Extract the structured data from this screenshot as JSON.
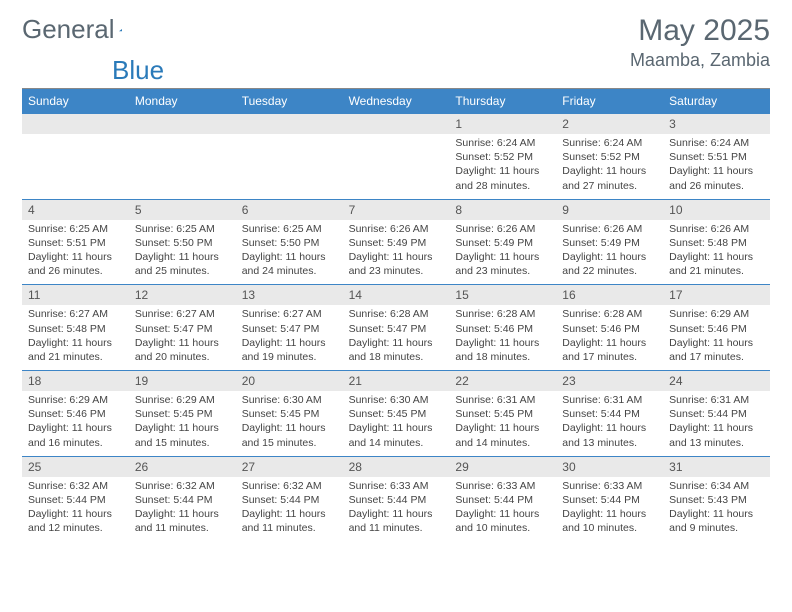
{
  "logo": {
    "text1": "General",
    "text2": "Blue"
  },
  "title": {
    "month": "May 2025",
    "location": "Maamba, Zambia"
  },
  "colors": {
    "header_bg": "#3d85c6",
    "header_text": "#ffffff",
    "daynum_bg": "#e9e9e9",
    "text": "#444444",
    "rule": "#3d85c6",
    "logo_gray": "#5a6771",
    "logo_blue": "#2a7ab9"
  },
  "day_names": [
    "Sunday",
    "Monday",
    "Tuesday",
    "Wednesday",
    "Thursday",
    "Friday",
    "Saturday"
  ],
  "weeks": [
    [
      {
        "n": "",
        "body": ""
      },
      {
        "n": "",
        "body": ""
      },
      {
        "n": "",
        "body": ""
      },
      {
        "n": "",
        "body": ""
      },
      {
        "n": "1",
        "body": "Sunrise: 6:24 AM\nSunset: 5:52 PM\nDaylight: 11 hours and 28 minutes."
      },
      {
        "n": "2",
        "body": "Sunrise: 6:24 AM\nSunset: 5:52 PM\nDaylight: 11 hours and 27 minutes."
      },
      {
        "n": "3",
        "body": "Sunrise: 6:24 AM\nSunset: 5:51 PM\nDaylight: 11 hours and 26 minutes."
      }
    ],
    [
      {
        "n": "4",
        "body": "Sunrise: 6:25 AM\nSunset: 5:51 PM\nDaylight: 11 hours and 26 minutes."
      },
      {
        "n": "5",
        "body": "Sunrise: 6:25 AM\nSunset: 5:50 PM\nDaylight: 11 hours and 25 minutes."
      },
      {
        "n": "6",
        "body": "Sunrise: 6:25 AM\nSunset: 5:50 PM\nDaylight: 11 hours and 24 minutes."
      },
      {
        "n": "7",
        "body": "Sunrise: 6:26 AM\nSunset: 5:49 PM\nDaylight: 11 hours and 23 minutes."
      },
      {
        "n": "8",
        "body": "Sunrise: 6:26 AM\nSunset: 5:49 PM\nDaylight: 11 hours and 23 minutes."
      },
      {
        "n": "9",
        "body": "Sunrise: 6:26 AM\nSunset: 5:49 PM\nDaylight: 11 hours and 22 minutes."
      },
      {
        "n": "10",
        "body": "Sunrise: 6:26 AM\nSunset: 5:48 PM\nDaylight: 11 hours and 21 minutes."
      }
    ],
    [
      {
        "n": "11",
        "body": "Sunrise: 6:27 AM\nSunset: 5:48 PM\nDaylight: 11 hours and 21 minutes."
      },
      {
        "n": "12",
        "body": "Sunrise: 6:27 AM\nSunset: 5:47 PM\nDaylight: 11 hours and 20 minutes."
      },
      {
        "n": "13",
        "body": "Sunrise: 6:27 AM\nSunset: 5:47 PM\nDaylight: 11 hours and 19 minutes."
      },
      {
        "n": "14",
        "body": "Sunrise: 6:28 AM\nSunset: 5:47 PM\nDaylight: 11 hours and 18 minutes."
      },
      {
        "n": "15",
        "body": "Sunrise: 6:28 AM\nSunset: 5:46 PM\nDaylight: 11 hours and 18 minutes."
      },
      {
        "n": "16",
        "body": "Sunrise: 6:28 AM\nSunset: 5:46 PM\nDaylight: 11 hours and 17 minutes."
      },
      {
        "n": "17",
        "body": "Sunrise: 6:29 AM\nSunset: 5:46 PM\nDaylight: 11 hours and 17 minutes."
      }
    ],
    [
      {
        "n": "18",
        "body": "Sunrise: 6:29 AM\nSunset: 5:46 PM\nDaylight: 11 hours and 16 minutes."
      },
      {
        "n": "19",
        "body": "Sunrise: 6:29 AM\nSunset: 5:45 PM\nDaylight: 11 hours and 15 minutes."
      },
      {
        "n": "20",
        "body": "Sunrise: 6:30 AM\nSunset: 5:45 PM\nDaylight: 11 hours and 15 minutes."
      },
      {
        "n": "21",
        "body": "Sunrise: 6:30 AM\nSunset: 5:45 PM\nDaylight: 11 hours and 14 minutes."
      },
      {
        "n": "22",
        "body": "Sunrise: 6:31 AM\nSunset: 5:45 PM\nDaylight: 11 hours and 14 minutes."
      },
      {
        "n": "23",
        "body": "Sunrise: 6:31 AM\nSunset: 5:44 PM\nDaylight: 11 hours and 13 minutes."
      },
      {
        "n": "24",
        "body": "Sunrise: 6:31 AM\nSunset: 5:44 PM\nDaylight: 11 hours and 13 minutes."
      }
    ],
    [
      {
        "n": "25",
        "body": "Sunrise: 6:32 AM\nSunset: 5:44 PM\nDaylight: 11 hours and 12 minutes."
      },
      {
        "n": "26",
        "body": "Sunrise: 6:32 AM\nSunset: 5:44 PM\nDaylight: 11 hours and 11 minutes."
      },
      {
        "n": "27",
        "body": "Sunrise: 6:32 AM\nSunset: 5:44 PM\nDaylight: 11 hours and 11 minutes."
      },
      {
        "n": "28",
        "body": "Sunrise: 6:33 AM\nSunset: 5:44 PM\nDaylight: 11 hours and 11 minutes."
      },
      {
        "n": "29",
        "body": "Sunrise: 6:33 AM\nSunset: 5:44 PM\nDaylight: 11 hours and 10 minutes."
      },
      {
        "n": "30",
        "body": "Sunrise: 6:33 AM\nSunset: 5:44 PM\nDaylight: 11 hours and 10 minutes."
      },
      {
        "n": "31",
        "body": "Sunrise: 6:34 AM\nSunset: 5:43 PM\nDaylight: 11 hours and 9 minutes."
      }
    ]
  ]
}
